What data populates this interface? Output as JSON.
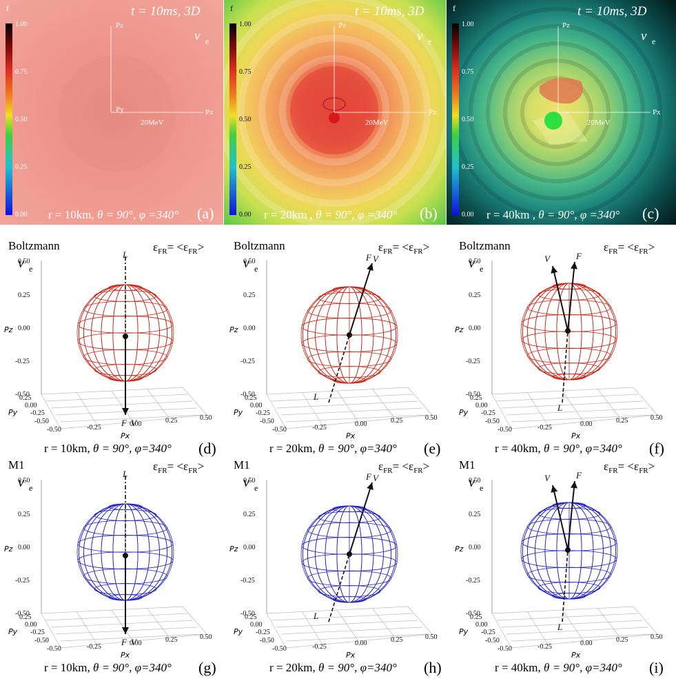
{
  "top_row": {
    "colorbar_label": "f",
    "colorbar_ticks": [
      "1.00",
      "0.75",
      "0.50",
      "0.25",
      "0.00"
    ],
    "time_label": "t = 10ms, 3D",
    "species": "ν",
    "species_sub": "e",
    "axis_pz": "Pz",
    "axis_px": "Px",
    "axis_py": "Py",
    "scale_label": "20MeV",
    "panels": [
      {
        "id": "a",
        "radius": "r = 10km, ",
        "theta": "θ = 90°, ",
        "phi": "φ =340°",
        "letter": "(a)"
      },
      {
        "id": "b",
        "radius": "r = 20km , ",
        "theta": "θ = 90°, ",
        "phi": "φ =340°",
        "letter": "(b)"
      },
      {
        "id": "c",
        "radius": "r = 40km , ",
        "theta": "θ = 90°, ",
        "phi": "φ =340°",
        "letter": "(c)"
      }
    ]
  },
  "sphere_plots": {
    "energy_label": "ε",
    "energy_sub": "FR",
    "energy_eq": "= <ε",
    "energy_sub2": "FR",
    "energy_close": ">",
    "species": "ν",
    "species_sub": "e",
    "pz_label": "Pz",
    "py_label": "Py",
    "px_label": "Px",
    "z_ticks": [
      "0.50",
      "0.25",
      "0.00",
      "-0.25",
      "-0.50"
    ],
    "x_ticks": [
      "-0.50",
      "-0.25",
      "0.00",
      "0.25",
      "0.50"
    ],
    "y_ticks": [
      "0.25",
      "0.00",
      "-0.25",
      "-0.50"
    ],
    "vec_F": "F",
    "vec_V": "V",
    "vec_L": "L",
    "rows": [
      {
        "method": "Boltzmann",
        "color": "#cc1f10",
        "panels": [
          {
            "radius": "r = 10km, ",
            "theta": "θ = 90°, ",
            "phi": "φ=340°",
            "letter": "(d)"
          },
          {
            "radius": "r = 20km, ",
            "theta": "θ = 90°, ",
            "phi": "φ=340°",
            "letter": "(e)"
          },
          {
            "radius": "r = 40km, ",
            "theta": "θ = 90°, ",
            "phi": "φ=340°",
            "letter": "(f)"
          }
        ]
      },
      {
        "method": "M1",
        "color": "#1c1ccc",
        "panels": [
          {
            "radius": "r = 10km, ",
            "theta": "θ = 90°, ",
            "phi": "φ=340°",
            "letter": "(g)"
          },
          {
            "radius": "r = 20km, ",
            "theta": "θ = 90°, ",
            "phi": "φ=340°",
            "letter": "(h)"
          },
          {
            "radius": "r = 40km, ",
            "theta": "θ = 90°, ",
            "phi": "φ=340°",
            "letter": "(i)"
          }
        ]
      }
    ]
  }
}
